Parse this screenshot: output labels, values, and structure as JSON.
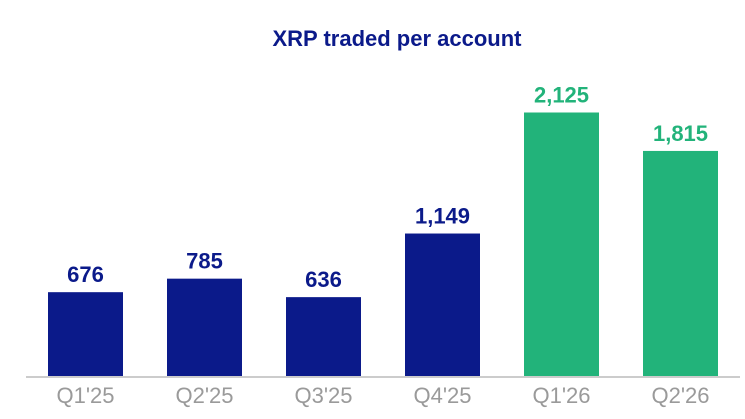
{
  "chart_data": {
    "type": "bar",
    "title": "XRP traded per account",
    "categories": [
      "Q1'25",
      "Q2'25",
      "Q3'25",
      "Q4'25",
      "Q1'26",
      "Q2'26"
    ],
    "values": [
      676,
      785,
      636,
      1149,
      2125,
      1815
    ],
    "value_labels": [
      "676",
      "785",
      "636",
      "1,149",
      "2,125",
      "1,815"
    ],
    "colors": [
      "#0b1a8a",
      "#0b1a8a",
      "#0b1a8a",
      "#0b1a8a",
      "#22b37a",
      "#22b37a"
    ],
    "ylim": [
      0,
      2500
    ]
  }
}
